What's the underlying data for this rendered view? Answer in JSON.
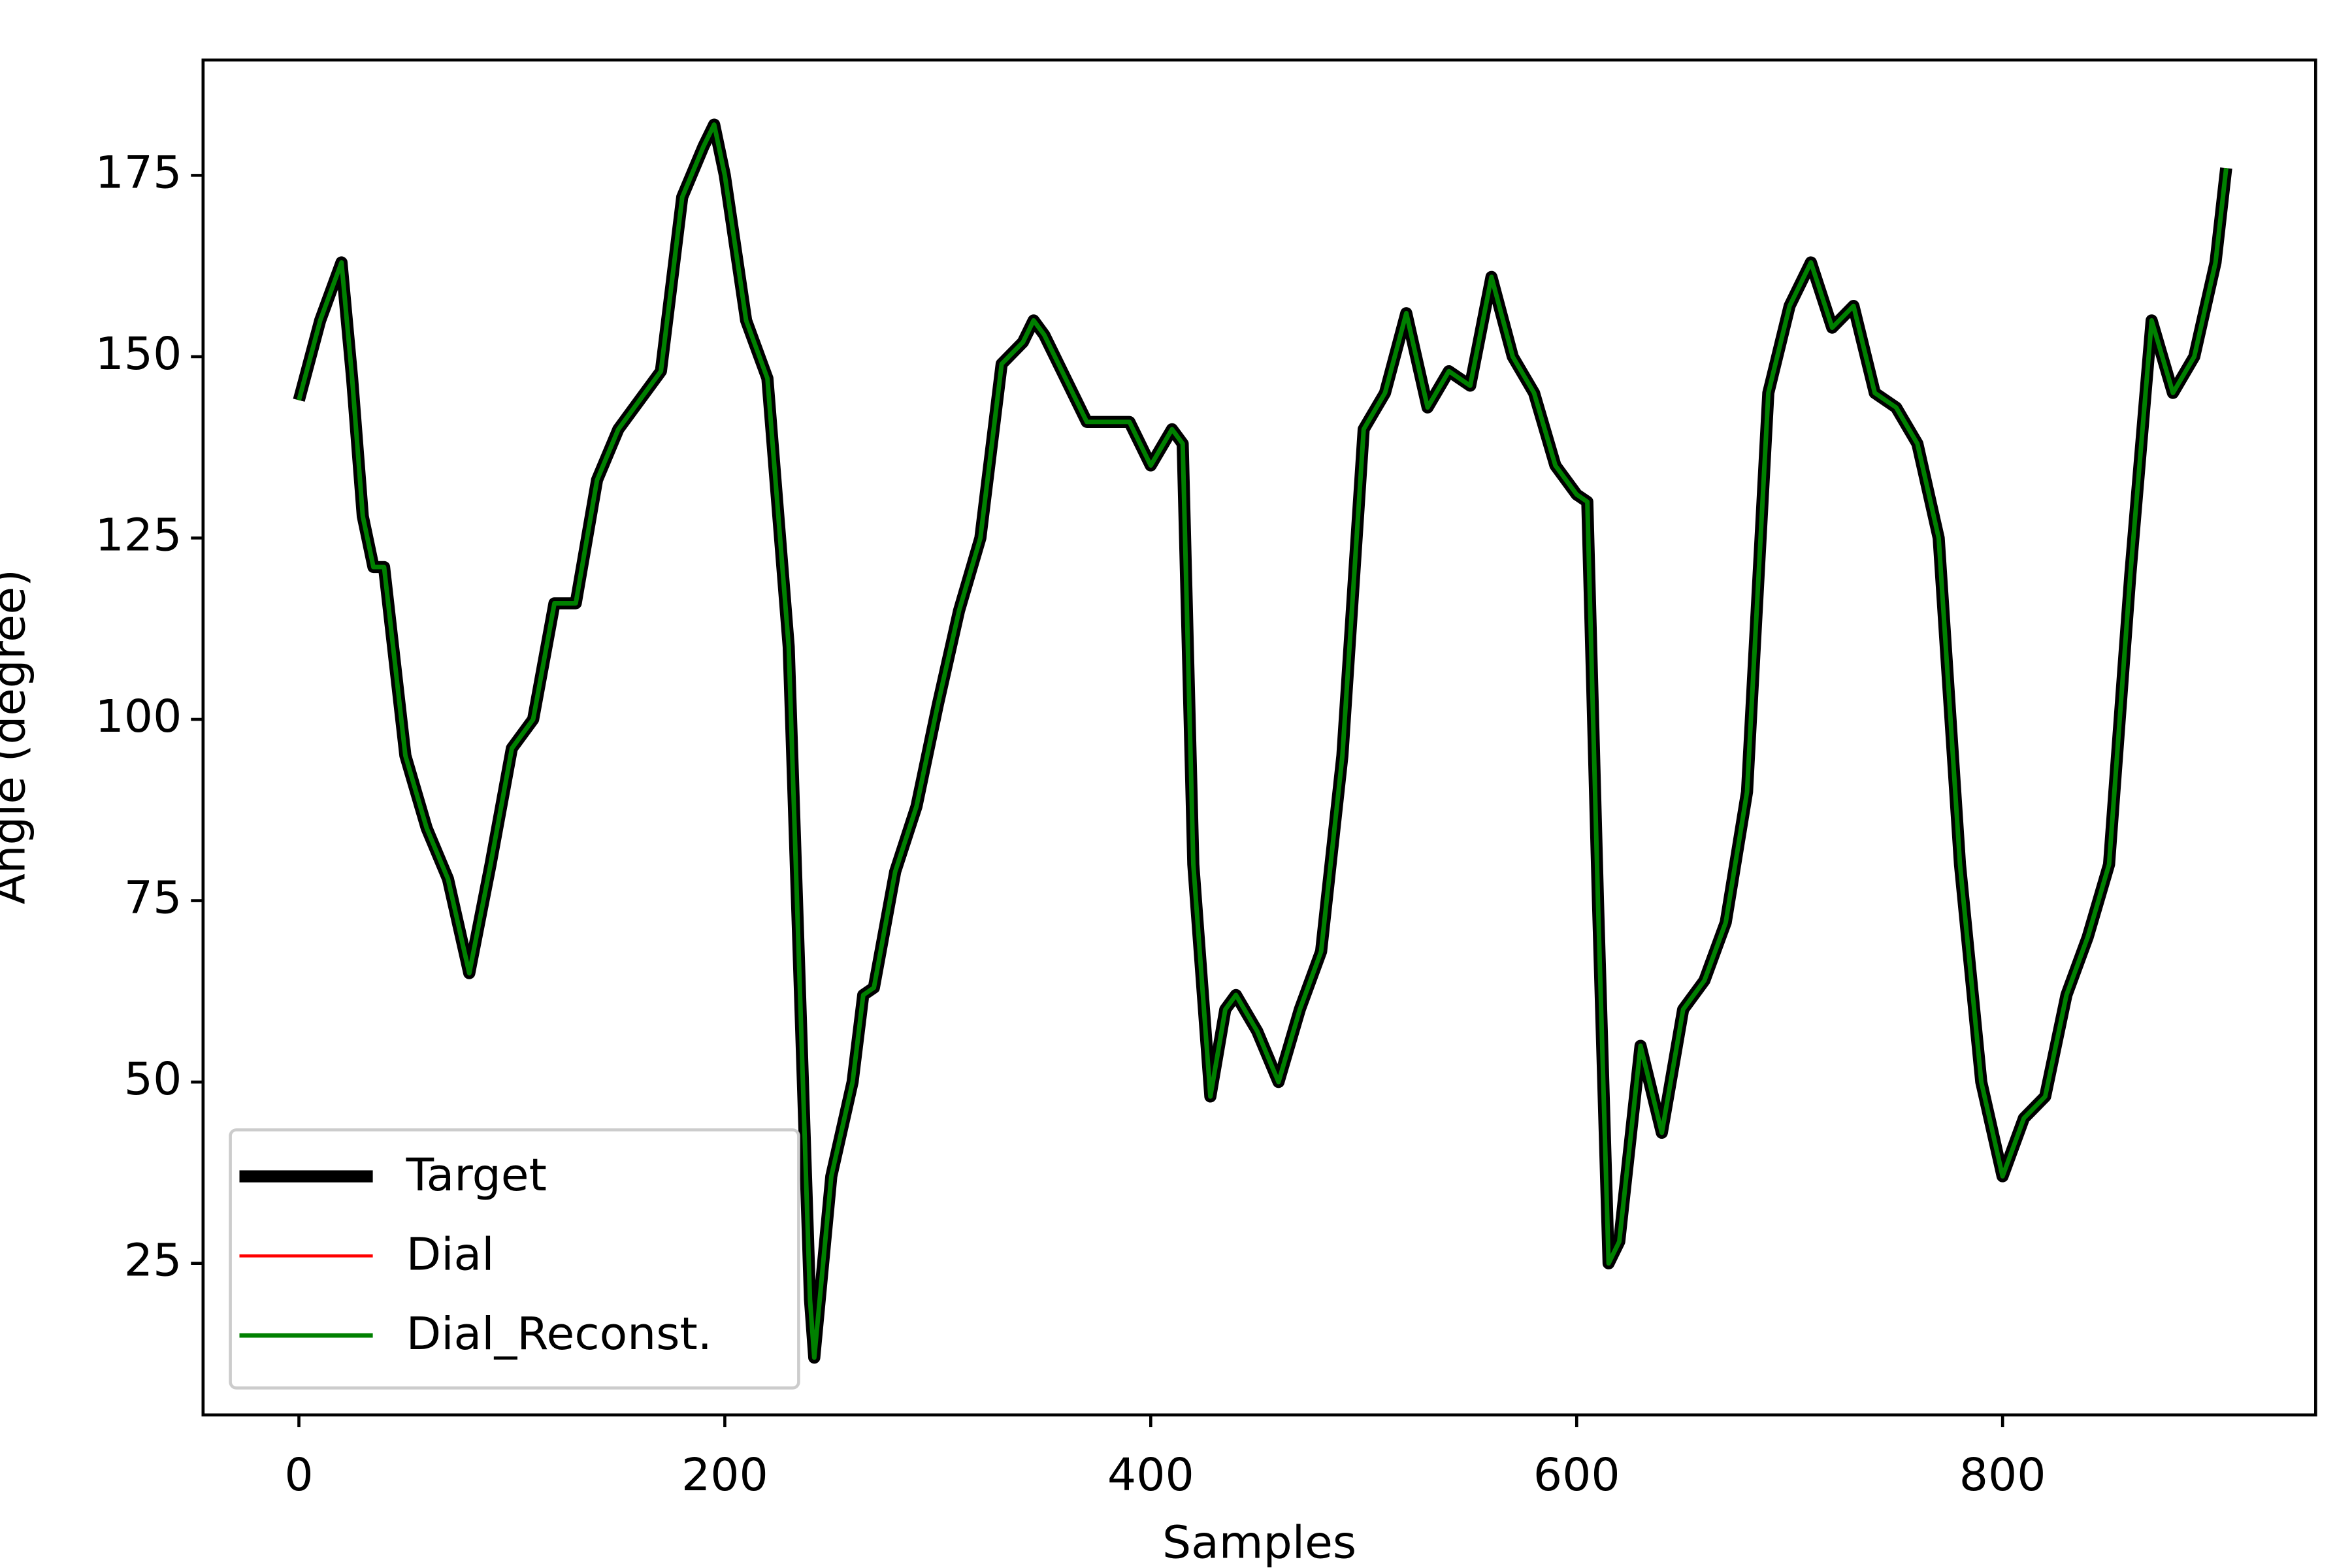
{
  "chart_data": {
    "type": "line",
    "xlabel": "Samples",
    "ylabel": "Angle (degree)",
    "x": [
      0,
      10,
      20,
      25,
      30,
      35,
      40,
      50,
      60,
      70,
      80,
      90,
      100,
      110,
      120,
      130,
      140,
      150,
      160,
      170,
      180,
      190,
      195,
      200,
      210,
      220,
      230,
      240,
      242,
      250,
      260,
      265,
      270,
      280,
      290,
      300,
      310,
      320,
      330,
      340,
      345,
      350,
      360,
      370,
      380,
      390,
      400,
      410,
      415,
      420,
      428,
      435,
      440,
      450,
      460,
      470,
      480,
      490,
      500,
      510,
      520,
      530,
      540,
      550,
      560,
      570,
      580,
      590,
      600,
      605,
      610,
      615,
      620,
      630,
      640,
      650,
      660,
      670,
      680,
      690,
      700,
      710,
      720,
      730,
      740,
      750,
      760,
      770,
      780,
      790,
      800,
      810,
      820,
      830,
      840,
      850,
      860,
      870,
      880,
      890,
      900,
      905
    ],
    "series": [
      {
        "name": "Target",
        "color": "#000000",
        "linewidth": 8,
        "values": [
          144,
          155,
          163,
          147,
          128,
          121,
          121,
          95,
          85,
          78,
          65,
          80,
          96,
          100,
          116,
          116,
          133,
          140,
          144,
          148,
          172,
          179,
          182,
          175,
          155,
          147,
          110,
          20,
          12,
          37,
          50,
          62,
          63,
          79,
          88,
          102,
          115,
          125,
          149,
          152,
          155,
          153,
          147,
          141,
          141,
          141,
          135,
          140,
          138,
          80,
          48,
          60,
          62,
          57,
          50,
          60,
          68,
          95,
          140,
          145,
          156,
          143,
          148,
          146,
          161,
          150,
          145,
          135,
          131,
          130,
          75,
          25,
          28,
          55,
          43,
          60,
          64,
          72,
          90,
          145,
          157,
          163,
          154,
          157,
          145,
          143,
          138,
          125,
          80,
          50,
          37,
          45,
          48,
          62,
          70,
          80,
          120,
          155,
          145,
          150,
          163,
          176
        ]
      },
      {
        "name": "Dial",
        "color": "#ff0000",
        "linewidth": 2,
        "values": [
          144,
          155,
          163,
          147,
          128,
          121,
          121,
          95,
          85,
          78,
          65,
          80,
          96,
          100,
          116,
          116,
          133,
          140,
          144,
          148,
          172,
          179,
          182,
          175,
          155,
          147,
          110,
          20,
          12,
          37,
          50,
          62,
          63,
          79,
          88,
          102,
          115,
          125,
          149,
          152,
          155,
          153,
          147,
          141,
          141,
          141,
          135,
          140,
          138,
          80,
          48,
          60,
          62,
          57,
          50,
          60,
          68,
          95,
          140,
          145,
          156,
          143,
          148,
          146,
          161,
          150,
          145,
          135,
          131,
          130,
          75,
          25,
          28,
          55,
          43,
          60,
          64,
          72,
          90,
          145,
          157,
          163,
          154,
          157,
          145,
          143,
          138,
          125,
          80,
          50,
          37,
          45,
          48,
          62,
          70,
          80,
          120,
          155,
          145,
          150,
          163,
          176
        ]
      },
      {
        "name": "Dial_Reconst.",
        "color": "#008000",
        "linewidth": 3,
        "values": [
          144,
          155,
          163,
          147,
          128,
          121,
          121,
          95,
          85,
          78,
          65,
          80,
          96,
          100,
          116,
          116,
          133,
          140,
          144,
          148,
          172,
          179,
          182,
          175,
          155,
          147,
          110,
          20,
          12,
          37,
          50,
          62,
          63,
          79,
          88,
          102,
          115,
          125,
          149,
          152,
          155,
          153,
          147,
          141,
          141,
          141,
          135,
          140,
          138,
          80,
          48,
          60,
          62,
          57,
          50,
          60,
          68,
          95,
          140,
          145,
          156,
          143,
          148,
          146,
          161,
          150,
          145,
          135,
          131,
          130,
          75,
          25,
          28,
          55,
          43,
          60,
          64,
          72,
          90,
          145,
          157,
          163,
          154,
          157,
          145,
          143,
          138,
          125,
          80,
          50,
          37,
          45,
          48,
          62,
          70,
          80,
          120,
          155,
          145,
          150,
          163,
          176
        ]
      }
    ],
    "xlim": [
      -45,
      947
    ],
    "ylim": [
      4.1,
      190.9
    ],
    "xticks": [
      0,
      200,
      400,
      600,
      800
    ],
    "yticks": [
      25,
      50,
      75,
      100,
      125,
      150,
      175
    ],
    "grid": false,
    "legend": "lower left"
  }
}
